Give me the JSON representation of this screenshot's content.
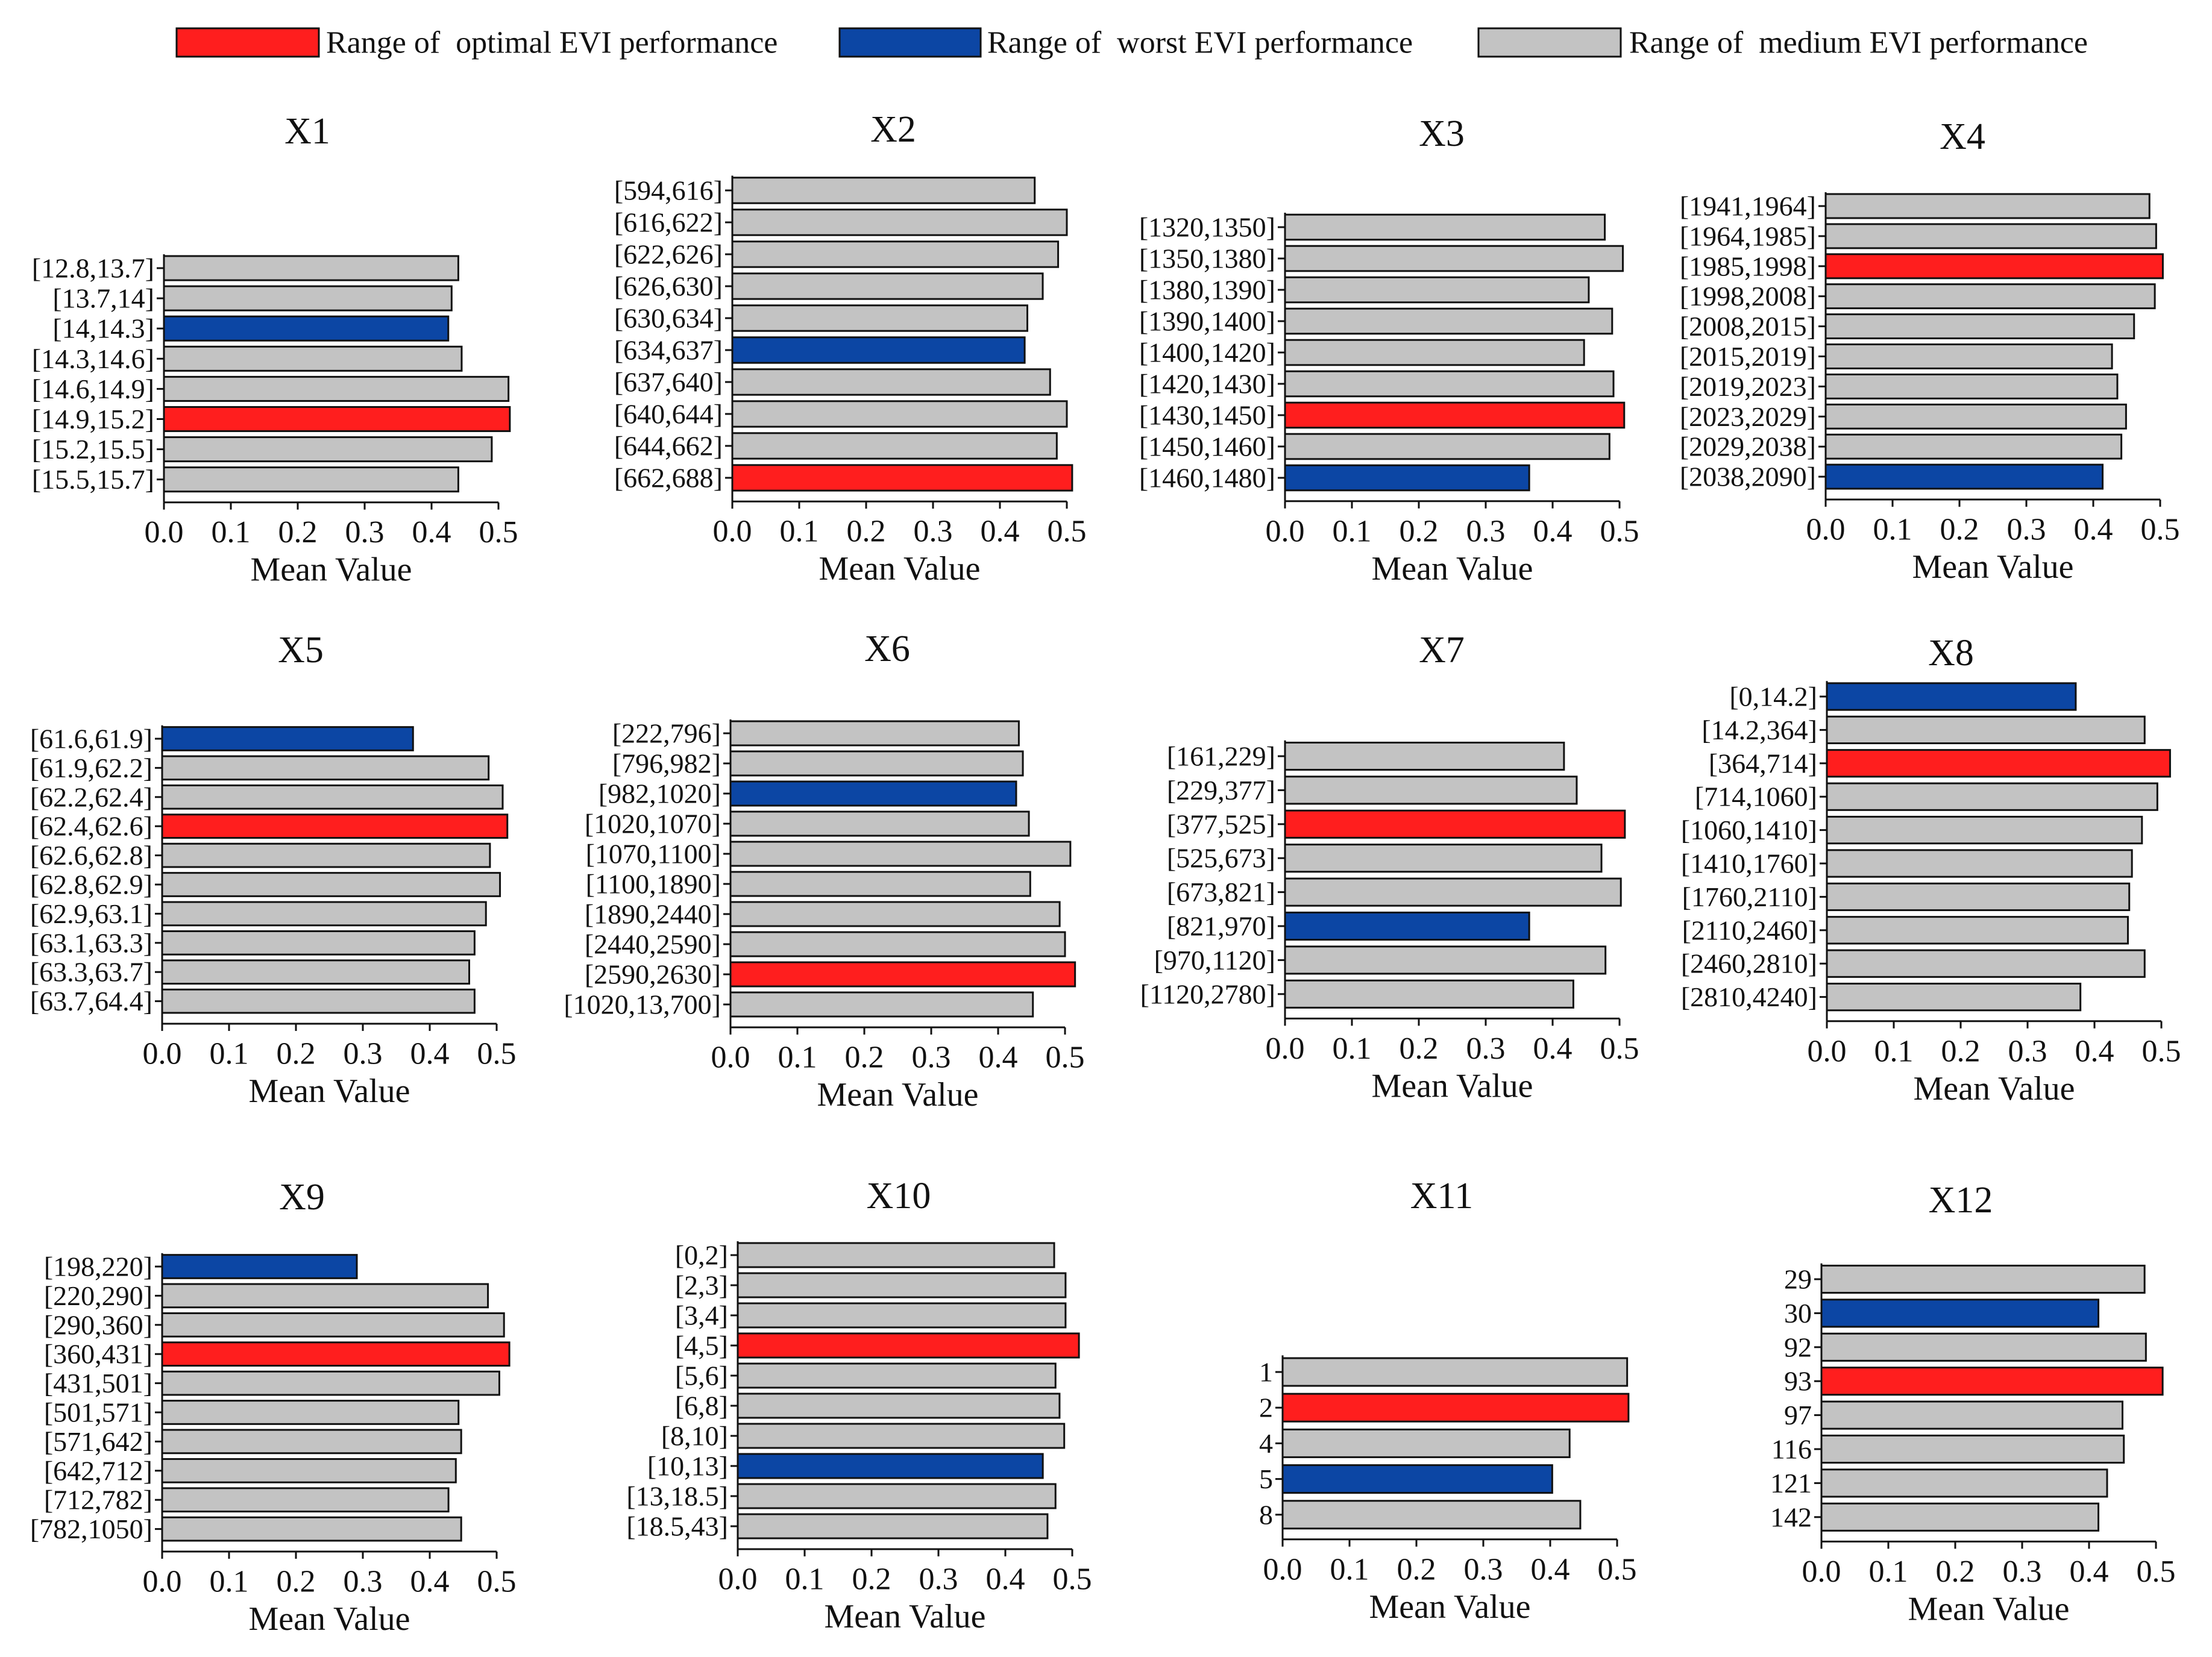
{
  "legend": {
    "optimal": {
      "label": "Range of  optimal EVI performance",
      "color": "#ff1e1e"
    },
    "worst": {
      "label": "Range of  worst EVI performance",
      "color": "#0c46a4"
    },
    "medium": {
      "label": "Range of  medium EVI performance",
      "color": "#c3c3c3"
    }
  },
  "chart_data": [
    {
      "type": "bar",
      "title": "X1",
      "xlabel": "Mean Value",
      "xlim": [
        0,
        0.5
      ],
      "xticks": [
        "0.0",
        "0.1",
        "0.2",
        "0.3",
        "0.4",
        "0.5"
      ],
      "categories": [
        "[12.8,13.7]",
        "[13.7,14]",
        "[14,14.3]",
        "[14.3,14.6]",
        "[14.6,14.9]",
        "[14.9,15.2]",
        "[15.2,15.5]",
        "[15.5,15.7]"
      ],
      "values": [
        0.44,
        0.43,
        0.425,
        0.445,
        0.515,
        0.517,
        0.49,
        0.44
      ],
      "optimal_index": 5,
      "worst_index": 2
    },
    {
      "type": "bar",
      "title": "X2",
      "xlabel": "Mean Value",
      "xlim": [
        0,
        0.5
      ],
      "xticks": [
        "0.0",
        "0.1",
        "0.2",
        "0.3",
        "0.4",
        "0.5"
      ],
      "categories": [
        "[594,616]",
        "[616,622]",
        "[622,626]",
        "[626,630]",
        "[630,634]",
        "[634,637]",
        "[637,640]",
        "[640,644]",
        "[644,662]",
        "[662,688]"
      ],
      "values": [
        0.452,
        0.5,
        0.487,
        0.464,
        0.441,
        0.437,
        0.475,
        0.5,
        0.485,
        0.508
      ],
      "optimal_index": 9,
      "worst_index": 5
    },
    {
      "type": "bar",
      "title": "X3",
      "xlabel": "Mean Value",
      "xlim": [
        0,
        0.5
      ],
      "xticks": [
        "0.0",
        "0.1",
        "0.2",
        "0.3",
        "0.4",
        "0.5"
      ],
      "categories": [
        "[1320,1350]",
        "[1350,1380]",
        "[1380,1390]",
        "[1390,1400]",
        "[1400,1420]",
        "[1420,1430]",
        "[1430,1450]",
        "[1450,1460]",
        "[1460,1480]"
      ],
      "values": [
        0.478,
        0.505,
        0.454,
        0.489,
        0.447,
        0.491,
        0.507,
        0.485,
        0.365
      ],
      "optimal_index": 6,
      "worst_index": 8
    },
    {
      "type": "bar",
      "title": "X4",
      "xlabel": "Mean Value",
      "xlim": [
        0,
        0.5
      ],
      "xticks": [
        "0.0",
        "0.1",
        "0.2",
        "0.3",
        "0.4",
        "0.5"
      ],
      "categories": [
        "[1941,1964]",
        "[1964,1985]",
        "[1985,1998]",
        "[1998,2008]",
        "[2008,2015]",
        "[2015,2019]",
        "[2019,2023]",
        "[2023,2029]",
        "[2029,2038]",
        "[2038,2090]"
      ],
      "values": [
        0.484,
        0.494,
        0.504,
        0.492,
        0.461,
        0.428,
        0.436,
        0.449,
        0.442,
        0.414
      ],
      "optimal_index": 2,
      "worst_index": 9
    },
    {
      "type": "bar",
      "title": "X5",
      "xlabel": "Mean Value",
      "xlim": [
        0,
        0.5
      ],
      "xticks": [
        "0.0",
        "0.1",
        "0.2",
        "0.3",
        "0.4",
        "0.5"
      ],
      "categories": [
        "[61.6,61.9]",
        "[61.9,62.2]",
        "[62.2,62.4]",
        "[62.4,62.6]",
        "[62.6,62.8]",
        "[62.8,62.9]",
        "[62.9,63.1]",
        "[63.1,63.3]",
        "[63.3,63.7]",
        "[63.7,64.4]"
      ],
      "values": [
        0.375,
        0.488,
        0.509,
        0.516,
        0.49,
        0.505,
        0.484,
        0.467,
        0.459,
        0.467
      ],
      "optimal_index": 3,
      "worst_index": 0
    },
    {
      "type": "bar",
      "title": "X6",
      "xlabel": "Mean Value",
      "xlim": [
        0,
        0.5
      ],
      "xticks": [
        "0.0",
        "0.1",
        "0.2",
        "0.3",
        "0.4",
        "0.5"
      ],
      "categories": [
        "[222,796]",
        "[796,982]",
        "[982,1020]",
        "[1020,1070]",
        "[1070,1100]",
        "[1100,1890]",
        "[1890,2440]",
        "[2440,2590]",
        "[2590,2630]",
        "[1020,13,700]"
      ],
      "values": [
        0.431,
        0.437,
        0.427,
        0.446,
        0.508,
        0.448,
        0.492,
        0.5,
        0.515,
        0.452
      ],
      "optimal_index": 8,
      "worst_index": 2
    },
    {
      "type": "bar",
      "title": "X7",
      "xlabel": "Mean Value",
      "xlim": [
        0,
        0.5
      ],
      "xticks": [
        "0.0",
        "0.1",
        "0.2",
        "0.3",
        "0.4",
        "0.5"
      ],
      "categories": [
        "[161,229]",
        "[229,377]",
        "[377,525]",
        "[525,673]",
        "[673,821]",
        "[821,970]",
        "[970,1120]",
        "[1120,2780]"
      ],
      "values": [
        0.417,
        0.436,
        0.508,
        0.473,
        0.502,
        0.365,
        0.479,
        0.431
      ],
      "optimal_index": 2,
      "worst_index": 5
    },
    {
      "type": "bar",
      "title": "X8",
      "xlabel": "Mean Value",
      "xlim": [
        0,
        0.5
      ],
      "xticks": [
        "0.0",
        "0.1",
        "0.2",
        "0.3",
        "0.4",
        "0.5"
      ],
      "categories": [
        "[0,14.2]",
        "[14.2,364]",
        "[364,714]",
        "[714,1060]",
        "[1060,1410]",
        "[1410,1760]",
        "[1760,2110]",
        "[2110,2460]",
        "[2460,2810]",
        "[2810,4240]"
      ],
      "values": [
        0.372,
        0.475,
        0.513,
        0.494,
        0.471,
        0.456,
        0.452,
        0.45,
        0.475,
        0.379
      ],
      "optimal_index": 2,
      "worst_index": 0
    },
    {
      "type": "bar",
      "title": "X9",
      "xlabel": "Mean Value",
      "xlim": [
        0,
        0.5
      ],
      "xticks": [
        "0.0",
        "0.1",
        "0.2",
        "0.3",
        "0.4",
        "0.5"
      ],
      "categories": [
        "[198,220]",
        "[220,290]",
        "[290,360]",
        "[360,431]",
        "[431,501]",
        "[501,571]",
        "[571,642]",
        "[642,712]",
        "[712,782]",
        "[782,1050]"
      ],
      "values": [
        0.291,
        0.487,
        0.511,
        0.519,
        0.504,
        0.443,
        0.447,
        0.439,
        0.428,
        0.447
      ],
      "optimal_index": 3,
      "worst_index": 0
    },
    {
      "type": "bar",
      "title": "X10",
      "xlabel": "Mean Value",
      "xlim": [
        0,
        0.5
      ],
      "xticks": [
        "0.0",
        "0.1",
        "0.2",
        "0.3",
        "0.4",
        "0.5"
      ],
      "categories": [
        "[0,2]",
        "[2,3]",
        "[3,4]",
        "[4,5]",
        "[5,6]",
        "[6,8]",
        "[8,10]",
        "[10,13]",
        "[13,18.5]",
        "[18.5,43]"
      ],
      "values": [
        0.473,
        0.49,
        0.49,
        0.51,
        0.475,
        0.481,
        0.488,
        0.456,
        0.475,
        0.463
      ],
      "optimal_index": 3,
      "worst_index": 7
    },
    {
      "type": "bar",
      "title": "X11",
      "xlabel": "Mean Value",
      "xlim": [
        0,
        0.5
      ],
      "xticks": [
        "0.0",
        "0.1",
        "0.2",
        "0.3",
        "0.4",
        "0.5"
      ],
      "categories": [
        "1",
        "2",
        "4",
        "5",
        "8"
      ],
      "values": [
        0.515,
        0.517,
        0.429,
        0.403,
        0.445
      ],
      "optimal_index": 1,
      "worst_index": 3
    },
    {
      "type": "bar",
      "title": "X12",
      "xlabel": "Mean Value",
      "xlim": [
        0,
        0.5
      ],
      "xticks": [
        "0.0",
        "0.1",
        "0.2",
        "0.3",
        "0.4",
        "0.5"
      ],
      "categories": [
        "29",
        "30",
        "92",
        "93",
        "97",
        "116",
        "121",
        "142"
      ],
      "values": [
        0.483,
        0.414,
        0.485,
        0.51,
        0.45,
        0.452,
        0.427,
        0.414
      ],
      "optimal_index": 3,
      "worst_index": 1
    }
  ]
}
